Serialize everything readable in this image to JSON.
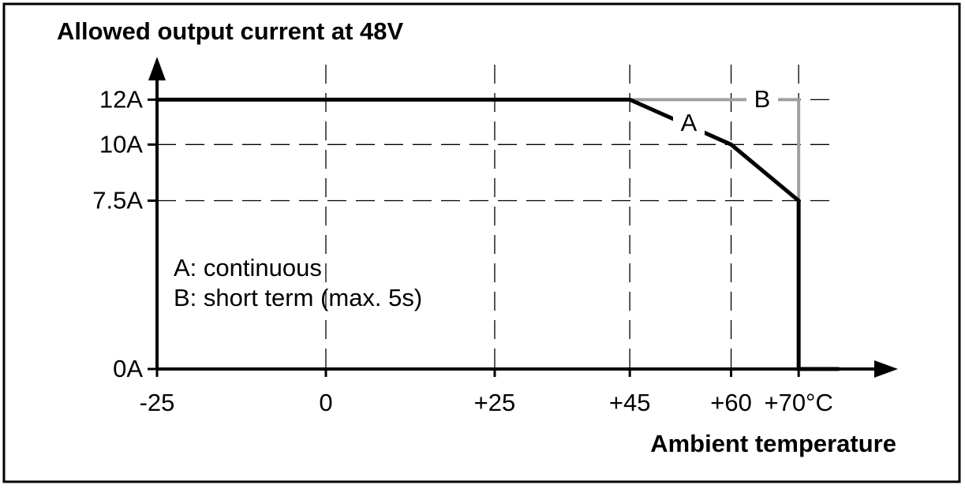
{
  "chart_data": {
    "type": "line",
    "title": "Allowed output current at 48V",
    "x_label": "Ambient temperature",
    "annotations": [
      "A: continuous",
      "B: short term (max. 5s)"
    ],
    "series": [
      {
        "name": "A",
        "color": "#000000",
        "x": [
          -25,
          45,
          60,
          70,
          70,
          76
        ],
        "values": [
          12,
          12,
          10,
          7.5,
          0,
          0
        ]
      },
      {
        "name": "B",
        "color": "#a0a0a0",
        "x": [
          45,
          70,
          70
        ],
        "values": [
          12,
          12,
          7.5
        ]
      }
    ],
    "xlim": [
      -25,
      84
    ],
    "ylim": [
      0,
      13.7
    ],
    "xticks": [
      {
        "value": -25,
        "label": "-25"
      },
      0,
      {
        "value": 25,
        "label": "+25"
      },
      {
        "value": 45,
        "label": "+45"
      },
      {
        "value": 60,
        "label": "+60"
      },
      {
        "value": 70,
        "label": "+70°C"
      }
    ],
    "yticks": [
      {
        "value": 0,
        "label": "0A"
      },
      {
        "value": 7.5,
        "label": "7.5A"
      },
      {
        "value": 10,
        "label": "10A"
      },
      {
        "value": 12,
        "label": "12A"
      }
    ],
    "grid": true
  }
}
